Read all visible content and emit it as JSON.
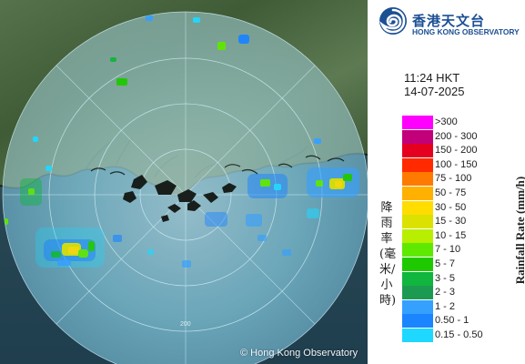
{
  "map": {
    "copyright": "© Hong Kong Observatory",
    "ring_labels": [
      "200"
    ],
    "colors": {
      "land": "#3e5c33",
      "land_light": "#6f8757",
      "sea": "#23404c",
      "radar_circle": "#9bd7ee",
      "coast": "#141b14"
    }
  },
  "header": {
    "logo_zh": "香港天文台",
    "logo_en": "HONG KONG OBSERVATORY"
  },
  "timestamp": {
    "time": "11:24 HKT",
    "date": "14-07-2025"
  },
  "legend": {
    "axis_title_zh": "降雨率(毫米/小時)",
    "axis_title_en": "Rainfall Rate (mm/h)",
    "items": [
      {
        "label": ">300",
        "color": "#ff00ff"
      },
      {
        "label": "200 - 300",
        "color": "#c2007a"
      },
      {
        "label": "150 - 200",
        "color": "#e5001f"
      },
      {
        "label": "100 - 150",
        "color": "#ff2a00"
      },
      {
        "label": "75 - 100",
        "color": "#ff7a00"
      },
      {
        "label": "50 - 75",
        "color": "#ffb000"
      },
      {
        "label": "30 - 50",
        "color": "#ffdd00"
      },
      {
        "label": "15 - 30",
        "color": "#dbe100"
      },
      {
        "label": "10 - 15",
        "color": "#b8ef00"
      },
      {
        "label": "7 - 10",
        "color": "#5fe800"
      },
      {
        "label": "5 - 7",
        "color": "#1fc900"
      },
      {
        "label": "3 - 5",
        "color": "#10b63d"
      },
      {
        "label": "2 - 3",
        "color": "#1d9a52"
      },
      {
        "label": "1 - 2",
        "color": "#36a0ff"
      },
      {
        "label": "0.50 - 1",
        "color": "#1b84ff"
      },
      {
        "label": "0.15 - 0.50",
        "color": "#1fd8ff"
      }
    ]
  }
}
